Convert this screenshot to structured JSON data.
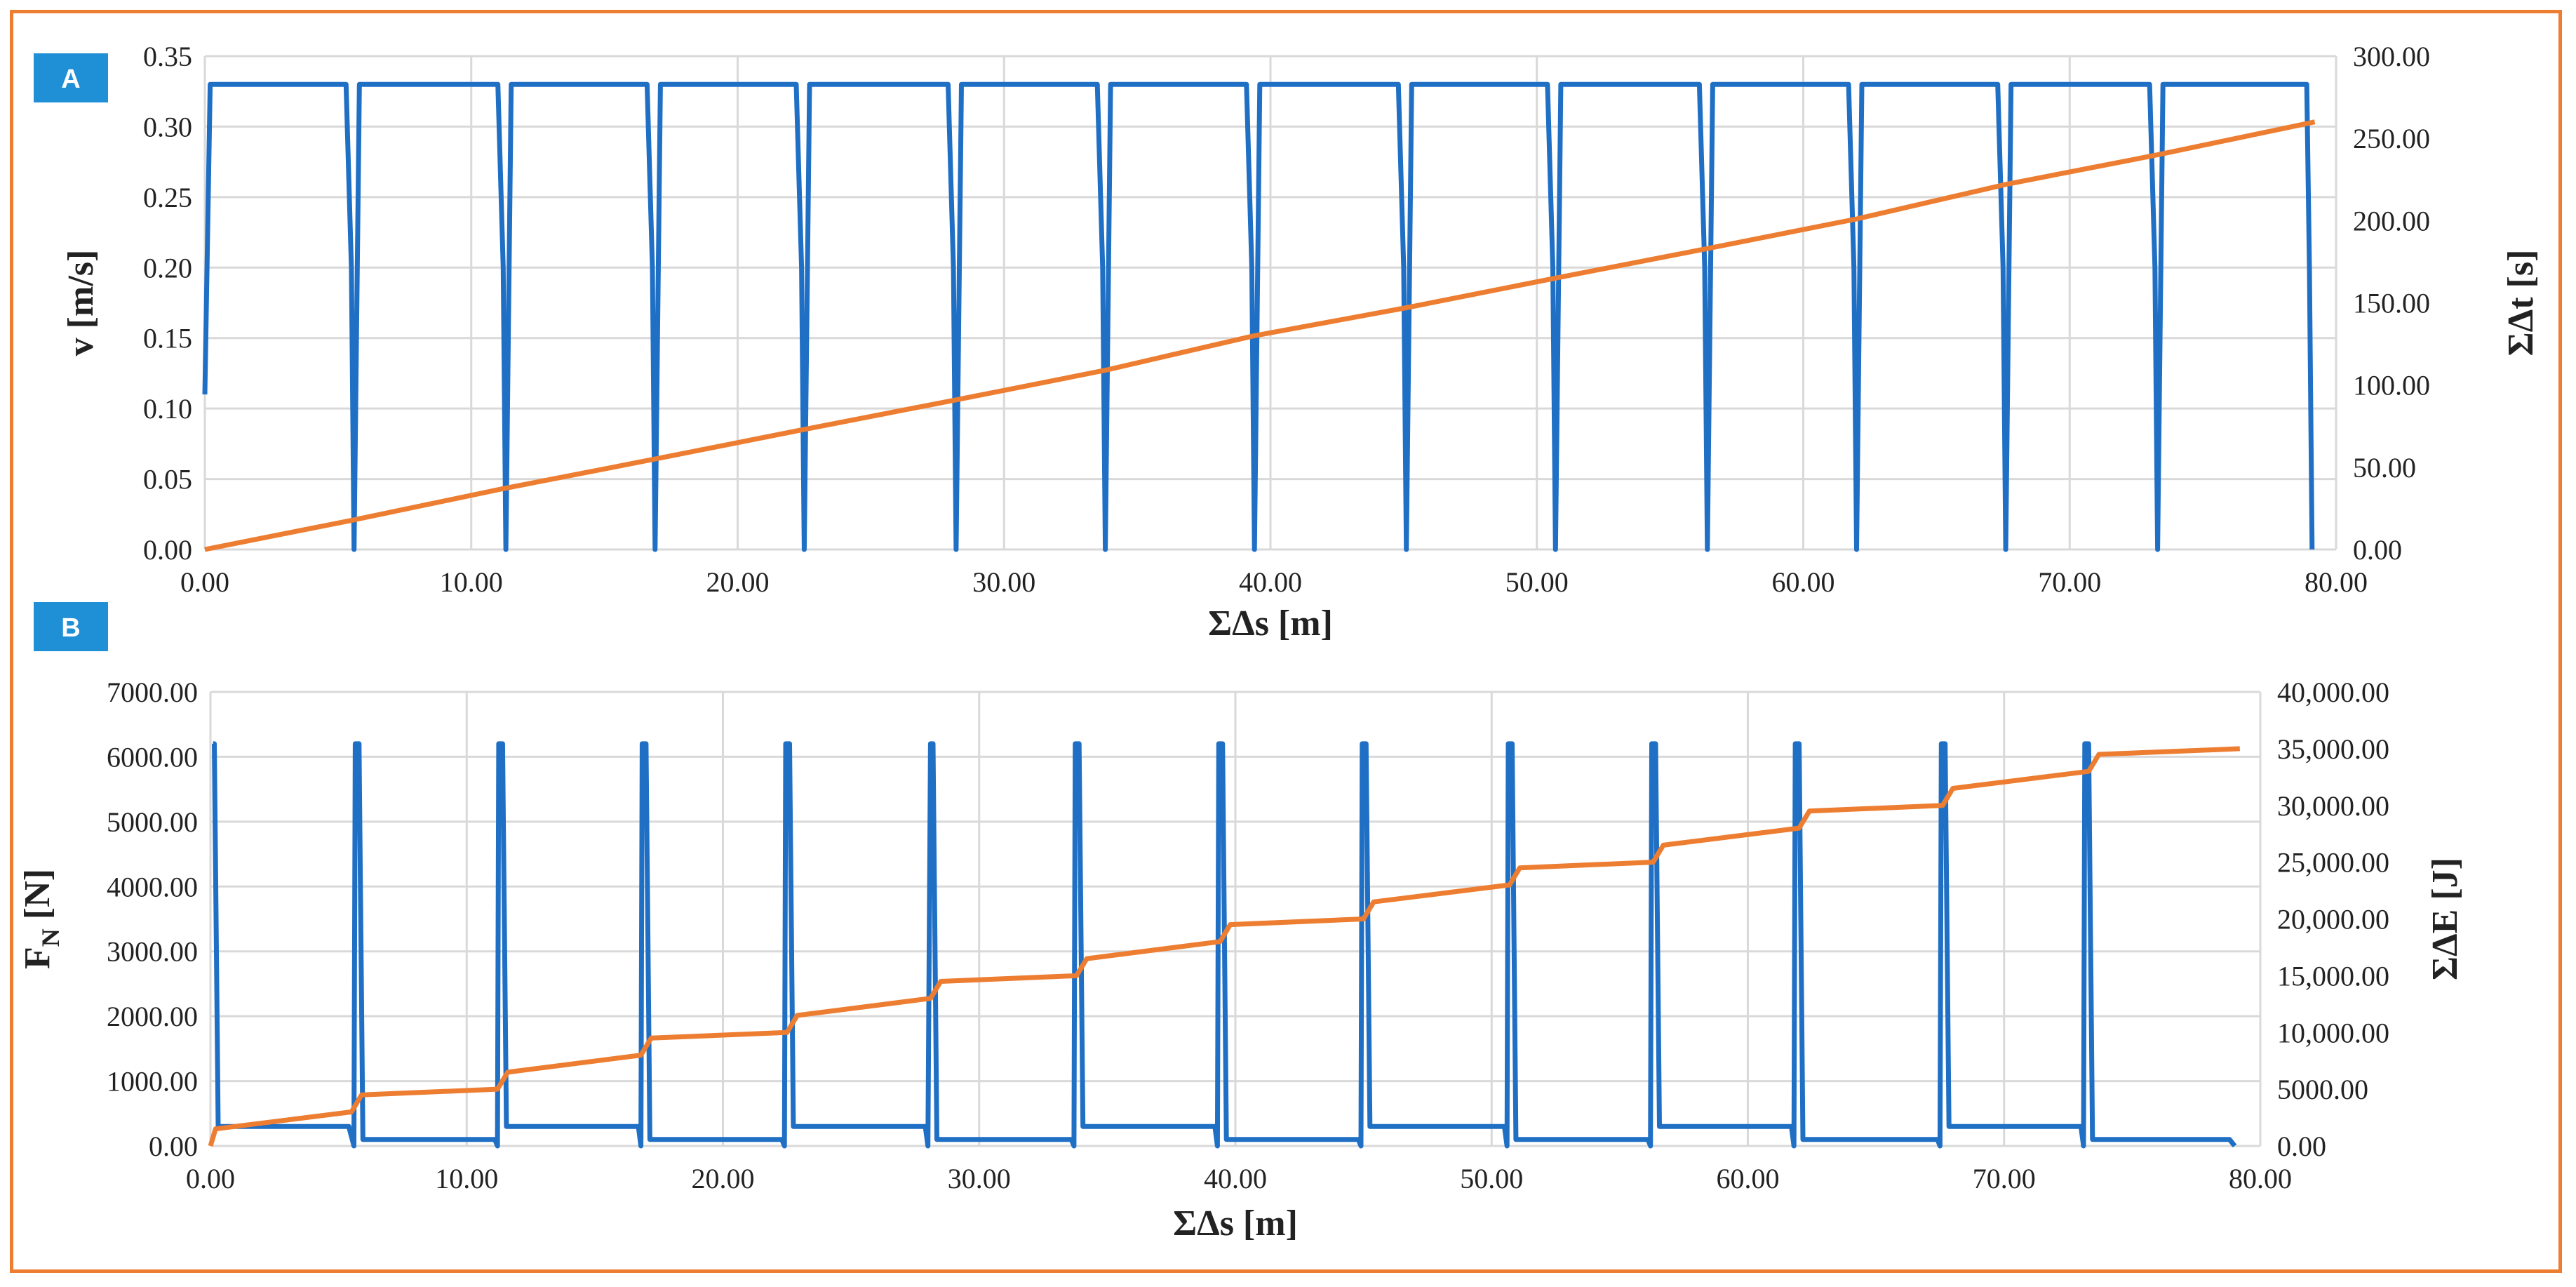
{
  "colors": {
    "frame": "#ED7D31",
    "badge": "#1F8FD6",
    "grid": "#D9D9D9",
    "series_blue": "#1F6FC5",
    "series_orange": "#ED7D31"
  },
  "chart_data": [
    {
      "panel": "A",
      "type": "line",
      "xlabel": "ΣΔs [m]",
      "ylabel": "v [m/s]",
      "y2label": "ΣΔt [s]",
      "xlim": [
        0,
        80
      ],
      "ylim": [
        0,
        0.35
      ],
      "y2lim": [
        0,
        300
      ],
      "xticks": [
        "0.00",
        "10.00",
        "20.00",
        "30.00",
        "40.00",
        "50.00",
        "60.00",
        "70.00",
        "80.00"
      ],
      "yticks": [
        "0.00",
        "0.05",
        "0.10",
        "0.15",
        "0.20",
        "0.25",
        "0.30",
        "0.35"
      ],
      "y2ticks": [
        "0.00",
        "50.00",
        "100.00",
        "150.00",
        "200.00",
        "250.00",
        "300.00"
      ],
      "grid": true,
      "series": [
        {
          "axis": "left",
          "x": [
            0,
            0.2,
            5.3,
            5.5,
            5.6,
            5.8,
            11.0,
            11.2,
            11.3,
            11.5,
            16.6,
            16.8,
            16.9,
            17.1,
            22.2,
            22.4,
            22.5,
            22.7,
            27.9,
            28.1,
            28.2,
            28.4,
            33.5,
            33.7,
            33.8,
            34.0,
            39.1,
            39.3,
            39.4,
            39.6,
            44.8,
            45.0,
            45.1,
            45.3,
            50.4,
            50.6,
            50.7,
            50.9,
            56.1,
            56.3,
            56.4,
            56.6,
            61.7,
            61.9,
            62.0,
            62.2,
            67.3,
            67.5,
            67.6,
            67.8,
            73.0,
            73.2,
            73.3,
            73.5,
            78.9,
            79.0,
            79.1
          ],
          "y": [
            0.11,
            0.33,
            0.33,
            0.2,
            0.0,
            0.33,
            0.33,
            0.2,
            0.0,
            0.33,
            0.33,
            0.2,
            0.0,
            0.33,
            0.33,
            0.2,
            0.0,
            0.33,
            0.33,
            0.2,
            0.0,
            0.33,
            0.33,
            0.2,
            0.0,
            0.33,
            0.33,
            0.2,
            0.0,
            0.33,
            0.33,
            0.2,
            0.0,
            0.33,
            0.33,
            0.2,
            0.0,
            0.33,
            0.33,
            0.2,
            0.0,
            0.33,
            0.33,
            0.2,
            0.0,
            0.33,
            0.33,
            0.2,
            0.0,
            0.33,
            0.33,
            0.2,
            0.0,
            0.33,
            0.33,
            0.2,
            0.0
          ]
        },
        {
          "axis": "right",
          "x": [
            0,
            5.6,
            11.2,
            16.9,
            22.5,
            28.2,
            33.8,
            39.4,
            45.1,
            50.7,
            56.4,
            62.0,
            67.6,
            73.3,
            79.2
          ],
          "y": [
            0,
            18,
            37,
            55,
            73,
            91,
            109,
            130,
            147,
            165,
            183,
            201,
            222,
            240,
            260
          ]
        }
      ]
    },
    {
      "panel": "B",
      "type": "line",
      "xlabel": "ΣΔs [m]",
      "ylabel_main": "F",
      "ylabel_sub": "N",
      "ylabel_unit": " [N]",
      "y2label": "ΣΔE [J]",
      "xlim": [
        0,
        80
      ],
      "ylim": [
        0,
        7000
      ],
      "y2lim": [
        0,
        40000
      ],
      "xticks": [
        "0.00",
        "10.00",
        "20.00",
        "30.00",
        "40.00",
        "50.00",
        "60.00",
        "70.00",
        "80.00"
      ],
      "yticks": [
        "0.00",
        "1000.00",
        "2000.00",
        "3000.00",
        "4000.00",
        "5000.00",
        "6000.00",
        "7000.00"
      ],
      "y2ticks": [
        "0.00",
        "5000.00",
        "10,000.00",
        "15,000.00",
        "20,000.00",
        "25,000.00",
        "30,000.00",
        "35,000.00",
        "40,000.00"
      ],
      "grid": true,
      "series": [
        {
          "axis": "left",
          "x": [
            0.1,
            0.15,
            0.3,
            0.4,
            5.4,
            5.6,
            5.65,
            5.8,
            5.95,
            11.1,
            11.2,
            11.25,
            11.4,
            11.55,
            16.7,
            16.8,
            16.85,
            17.0,
            17.15,
            22.3,
            22.4,
            22.45,
            22.6,
            22.75,
            27.9,
            28.0,
            28.1,
            28.2,
            28.35,
            33.6,
            33.7,
            33.75,
            33.9,
            34.05,
            39.2,
            39.3,
            39.35,
            39.5,
            39.65,
            44.8,
            44.9,
            44.95,
            45.1,
            45.25,
            50.5,
            50.6,
            50.65,
            50.8,
            50.95,
            56.1,
            56.2,
            56.25,
            56.4,
            56.55,
            61.7,
            61.8,
            61.85,
            62.0,
            62.15,
            67.4,
            67.5,
            67.55,
            67.7,
            67.85,
            73.0,
            73.1,
            73.15,
            73.3,
            73.45,
            78.8,
            79.0
          ],
          "y": [
            6200,
            6200,
            300,
            300,
            300,
            0,
            6200,
            6200,
            100,
            100,
            0,
            6200,
            6200,
            300,
            300,
            0,
            6200,
            6200,
            100,
            100,
            0,
            6200,
            6200,
            300,
            300,
            0,
            6200,
            6200,
            100,
            100,
            0,
            6200,
            6200,
            300,
            300,
            0,
            6200,
            6200,
            100,
            100,
            0,
            6200,
            6200,
            300,
            300,
            0,
            6200,
            6200,
            100,
            100,
            0,
            6200,
            6200,
            300,
            300,
            0,
            6200,
            6200,
            100,
            100,
            0,
            6200,
            6200,
            300,
            300,
            0,
            6200,
            6200,
            100,
            100,
            0
          ]
        },
        {
          "axis": "right",
          "x": [
            0,
            0.2,
            5.5,
            5.9,
            11.2,
            11.6,
            16.8,
            17.2,
            22.5,
            22.9,
            28.1,
            28.5,
            33.8,
            34.2,
            39.4,
            39.8,
            45.0,
            45.4,
            50.7,
            51.1,
            56.3,
            56.7,
            62.0,
            62.4,
            67.6,
            68.0,
            73.3,
            73.7,
            79.2
          ],
          "y": [
            0,
            1500,
            3000,
            4500,
            5000,
            6500,
            8000,
            9500,
            10000,
            11500,
            13000,
            14500,
            15000,
            16500,
            18000,
            19500,
            20000,
            21500,
            23000,
            24500,
            25000,
            26500,
            28000,
            29500,
            30000,
            31500,
            33000,
            34500,
            35000
          ]
        }
      ]
    }
  ]
}
